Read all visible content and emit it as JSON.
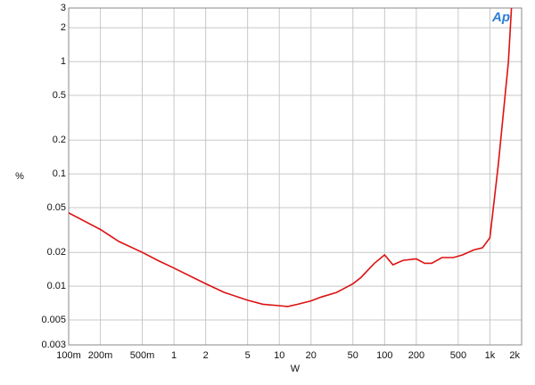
{
  "chart_data": {
    "type": "line",
    "logo": "Ap",
    "xlabel": "W",
    "ylabel": "%",
    "xlog": true,
    "ylog": true,
    "grid": true,
    "xlim": [
      0.1,
      2000
    ],
    "ylim": [
      0.003,
      3
    ],
    "xticks": [
      {
        "value": 0.1,
        "label": "100m"
      },
      {
        "value": 0.2,
        "label": "200m"
      },
      {
        "value": 0.5,
        "label": "500m"
      },
      1,
      2,
      5,
      10,
      20,
      50,
      100,
      200,
      500,
      {
        "value": 1000,
        "label": "1k"
      },
      {
        "value": 2000,
        "label": "2k"
      }
    ],
    "yticks": [
      0.003,
      0.005,
      0.01,
      0.02,
      0.05,
      0.1,
      0.2,
      0.5,
      1,
      2,
      3
    ],
    "x": [
      0.1,
      0.2,
      0.3,
      0.5,
      0.7,
      1,
      2,
      3,
      5,
      7,
      10,
      12,
      15,
      20,
      25,
      35,
      50,
      60,
      70,
      80,
      100,
      120,
      150,
      200,
      240,
      280,
      350,
      450,
      550,
      700,
      850,
      1000,
      1200,
      1500,
      1600
    ],
    "series": [
      {
        "color": "#dd1111",
        "values": [
          0.045,
          0.032,
          0.025,
          0.02,
          0.017,
          0.0145,
          0.0105,
          0.0088,
          0.0075,
          0.0069,
          0.0067,
          0.0066,
          0.0069,
          0.0074,
          0.008,
          0.0088,
          0.0105,
          0.012,
          0.014,
          0.016,
          0.019,
          0.0155,
          0.017,
          0.0175,
          0.016,
          0.016,
          0.018,
          0.018,
          0.019,
          0.021,
          0.022,
          0.027,
          0.12,
          1.0,
          3.0
        ]
      }
    ]
  }
}
